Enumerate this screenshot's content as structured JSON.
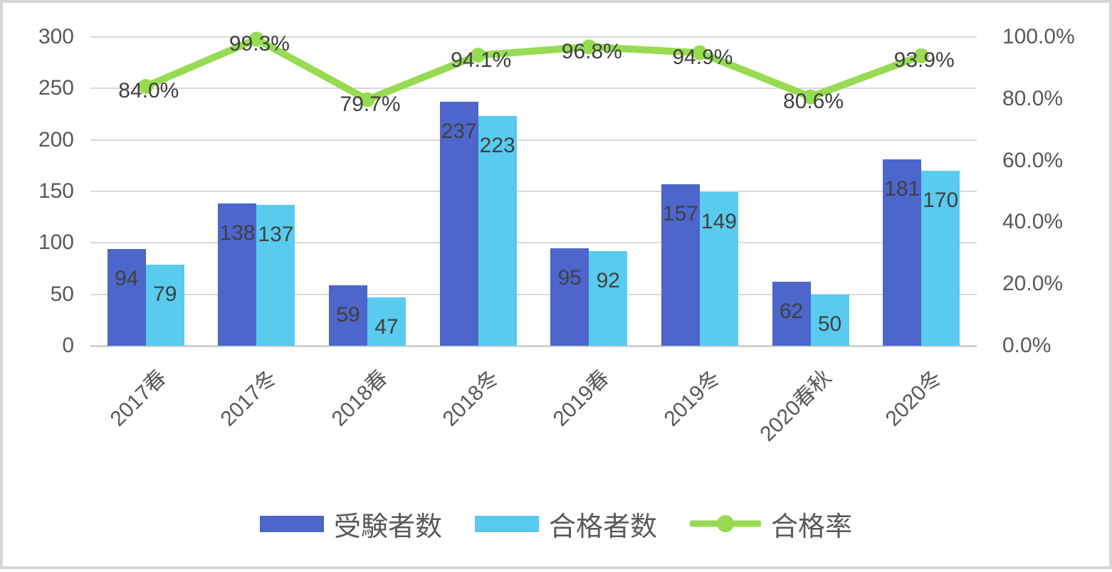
{
  "chart_data": {
    "type": "combo-bar-line",
    "categories": [
      "2017春",
      "2017冬",
      "2018春",
      "2018冬",
      "2019春",
      "2019冬",
      "2020春秋",
      "2020冬"
    ],
    "series": [
      {
        "name": "受験者数",
        "type": "bar",
        "axis": "left",
        "color": "#4C66CB",
        "values": [
          94,
          138,
          59,
          237,
          95,
          157,
          62,
          181
        ]
      },
      {
        "name": "合格者数",
        "type": "bar",
        "axis": "left",
        "color": "#58CBEF",
        "values": [
          79,
          137,
          47,
          223,
          92,
          149,
          50,
          170
        ]
      },
      {
        "name": "合格率",
        "type": "line",
        "axis": "right",
        "color": "#97DB52",
        "values": [
          84.0,
          99.3,
          79.7,
          94.1,
          96.8,
          94.9,
          80.6,
          93.9
        ],
        "labels": [
          "84.0%",
          "99.3%",
          "79.7%",
          "94.1%",
          "96.8%",
          "94.9%",
          "80.6%",
          "93.9%"
        ]
      }
    ],
    "left_axis": {
      "min": 0,
      "max": 300,
      "ticks": [
        "300",
        "250",
        "200",
        "150",
        "100",
        "50",
        "0"
      ]
    },
    "right_axis": {
      "min": 0,
      "max": 100,
      "ticks": [
        "100.0%",
        "80.0%",
        "60.0%",
        "40.0%",
        "20.0%",
        "0.0%"
      ]
    },
    "grid": true,
    "legend_position": "bottom",
    "title": ""
  },
  "colors": {
    "grid": "#D9D9D9",
    "axis_line": "#D1D1D1",
    "tick_text": "#595959",
    "data_label_text": "#404040",
    "frame_border": "#D6D6D6"
  }
}
